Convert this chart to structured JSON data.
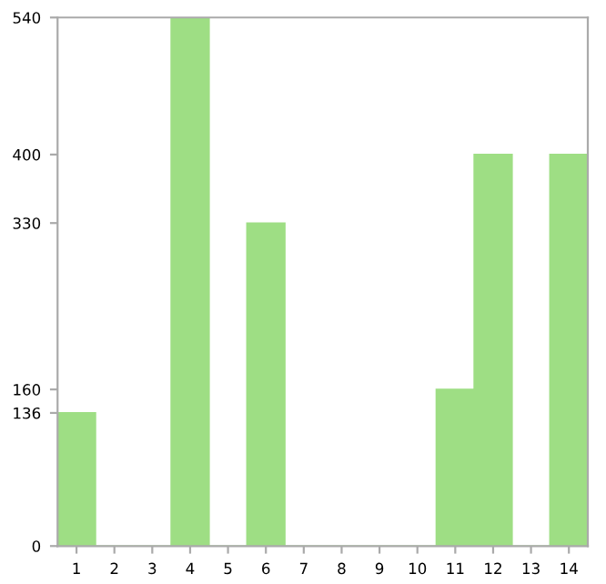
{
  "chart_data": {
    "type": "bar",
    "categories": [
      "1",
      "2",
      "3",
      "4",
      "5",
      "6",
      "7",
      "8",
      "9",
      "10",
      "11",
      "12",
      "13",
      "14"
    ],
    "values": [
      136,
      0,
      0,
      540,
      0,
      330,
      0,
      0,
      0,
      0,
      160,
      400,
      0,
      400
    ],
    "color": "#9ede84",
    "ylim": [
      0,
      540
    ],
    "yticks": [
      0,
      136,
      160,
      330,
      400,
      540
    ],
    "grid": false
  }
}
